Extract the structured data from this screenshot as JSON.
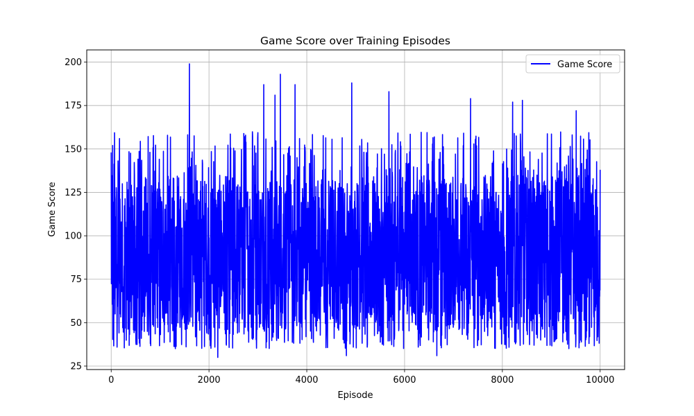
{
  "chart_data": {
    "type": "line",
    "title": "Game Score over Training Episodes",
    "xlabel": "Episode",
    "ylabel": "Game Score",
    "xlim": [
      -500,
      10500
    ],
    "ylim": [
      23,
      207
    ],
    "x_ticks": [
      0,
      2000,
      4000,
      6000,
      8000,
      10000
    ],
    "x_tick_labels": [
      "0",
      "2000",
      "4000",
      "6000",
      "8000",
      "10000"
    ],
    "y_ticks": [
      25,
      50,
      75,
      100,
      125,
      150,
      175,
      200
    ],
    "y_tick_labels": [
      "25",
      "50",
      "75",
      "100",
      "125",
      "150",
      "175",
      "200"
    ],
    "grid": true,
    "legend": {
      "position": "top-right",
      "entries": [
        "Game Score"
      ]
    },
    "series": [
      {
        "name": "Game Score",
        "color": "#0000ff",
        "num_episodes": 10000,
        "x_range": [
          0,
          10000
        ],
        "typical_band": [
          45,
          135
        ],
        "min_value": 30,
        "max_value": 199,
        "notable_points": [
          {
            "x": 0,
            "y": 148
          },
          {
            "x": 30,
            "y": 152
          },
          {
            "x": 170,
            "y": 156
          },
          {
            "x": 1600,
            "y": 199
          },
          {
            "x": 2180,
            "y": 30
          },
          {
            "x": 3120,
            "y": 187
          },
          {
            "x": 3350,
            "y": 181
          },
          {
            "x": 3460,
            "y": 193
          },
          {
            "x": 3760,
            "y": 187
          },
          {
            "x": 4810,
            "y": 31
          },
          {
            "x": 4920,
            "y": 188
          },
          {
            "x": 5680,
            "y": 183
          },
          {
            "x": 6660,
            "y": 31
          },
          {
            "x": 7350,
            "y": 179
          },
          {
            "x": 8210,
            "y": 177
          },
          {
            "x": 8410,
            "y": 178
          },
          {
            "x": 9510,
            "y": 172
          },
          {
            "x": 10000,
            "y": 138
          }
        ]
      }
    ]
  }
}
